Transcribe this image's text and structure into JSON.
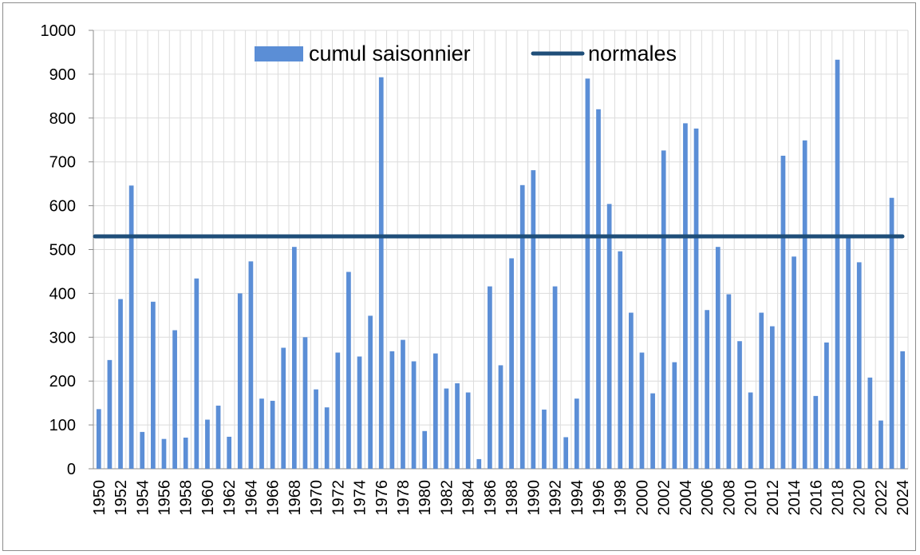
{
  "chart_data": {
    "type": "bar",
    "title": "",
    "xlabel": "",
    "ylabel": "",
    "ylim": [
      0,
      1000
    ],
    "yticks": [
      0,
      100,
      200,
      300,
      400,
      500,
      600,
      700,
      800,
      900,
      1000
    ],
    "categories": [
      "1950",
      "1951",
      "1952",
      "1953",
      "1954",
      "1955",
      "1956",
      "1957",
      "1958",
      "1959",
      "1960",
      "1961",
      "1962",
      "1963",
      "1964",
      "1965",
      "1966",
      "1967",
      "1968",
      "1969",
      "1970",
      "1971",
      "1972",
      "1973",
      "1974",
      "1975",
      "1976",
      "1977",
      "1978",
      "1979",
      "1980",
      "1981",
      "1982",
      "1983",
      "1984",
      "1985",
      "1986",
      "1987",
      "1988",
      "1989",
      "1990",
      "1991",
      "1992",
      "1993",
      "1994",
      "1995",
      "1996",
      "1997",
      "1998",
      "1999",
      "2000",
      "2001",
      "2002",
      "2003",
      "2004",
      "2005",
      "2006",
      "2007",
      "2008",
      "2009",
      "2010",
      "2011",
      "2012",
      "2013",
      "2014",
      "2015",
      "2016",
      "2017",
      "2018",
      "2019",
      "2020",
      "2021",
      "2022",
      "2023",
      "2024"
    ],
    "xtick_labels": [
      "1950",
      "1952",
      "1954",
      "1956",
      "1958",
      "1960",
      "1962",
      "1964",
      "1966",
      "1968",
      "1970",
      "1972",
      "1974",
      "1976",
      "1978",
      "1980",
      "1982",
      "1984",
      "1986",
      "1988",
      "1990",
      "1992",
      "1994",
      "1996",
      "1998",
      "2000",
      "2002",
      "2004",
      "2006",
      "2008",
      "2010",
      "2012",
      "2014",
      "2016",
      "2018",
      "2020",
      "2022",
      "2024"
    ],
    "series": [
      {
        "name": "cumul saisonnier",
        "type": "bar",
        "color": "#5b8ed6",
        "values": [
          136,
          248,
          387,
          646,
          84,
          381,
          68,
          316,
          71,
          434,
          112,
          144,
          73,
          400,
          473,
          160,
          155,
          276,
          506,
          300,
          181,
          140,
          265,
          449,
          256,
          349,
          893,
          268,
          294,
          245,
          86,
          263,
          183,
          195,
          174,
          22,
          416,
          236,
          480,
          647,
          681,
          135,
          416,
          72,
          160,
          890,
          820,
          604,
          496,
          356,
          265,
          172,
          726,
          243,
          788,
          776,
          362,
          506,
          398,
          291,
          174,
          356,
          325,
          714,
          484,
          749,
          166,
          288,
          933,
          532,
          471,
          208,
          110,
          618,
          268
        ]
      },
      {
        "name": "normales",
        "type": "line",
        "color": "#1f4e79",
        "value": 530
      }
    ],
    "legend": [
      "cumul saisonnier",
      "normales"
    ],
    "legend_position": "top-center",
    "grid": true
  }
}
